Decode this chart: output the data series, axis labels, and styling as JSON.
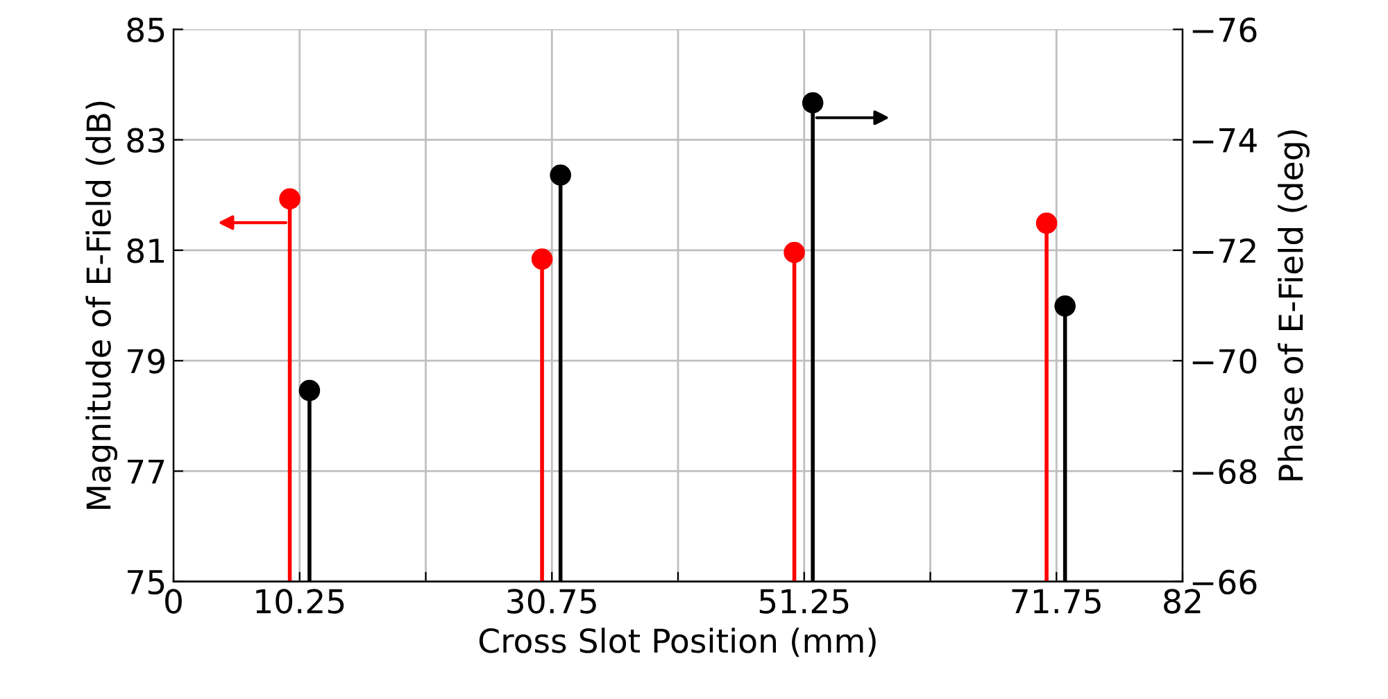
{
  "chart_data": {
    "type": "lollipop",
    "xlabel": "Cross Slot Position (mm)",
    "ylabel": "Magnitude of E-Field (dB)",
    "y2label": "Phase of E-Field (deg)",
    "xlim": [
      0,
      82
    ],
    "xticks": [
      0,
      10.25,
      {
        "value": 20.5,
        "label": null
      },
      30.75,
      {
        "value": 41,
        "label": null
      },
      51.25,
      {
        "value": 61.5,
        "label": null
      },
      71.75,
      82
    ],
    "ylim": [
      75,
      85
    ],
    "yticks": [
      75,
      77,
      79,
      81,
      83,
      85
    ],
    "y2lim": [
      -66,
      -76
    ],
    "y2ticks": [
      {
        "value": -66,
        "label": "−66"
      },
      {
        "value": -68,
        "label": "−68"
      },
      {
        "value": -70,
        "label": "−70"
      },
      {
        "value": -72,
        "label": "−72"
      },
      {
        "value": -74,
        "label": "−74"
      },
      {
        "value": -76,
        "label": "−76"
      }
    ],
    "grid": true,
    "marker": "circle",
    "series": [
      {
        "color": "#ff0000",
        "x": [
          9.45,
          29.95,
          50.45,
          70.95
        ],
        "values": [
          81.93,
          80.84,
          80.96,
          81.49
        ]
      },
      {
        "color": "#000000",
        "axis": "y2",
        "x": [
          11.05,
          31.45,
          51.95,
          72.45
        ],
        "values": [
          -69.46,
          -73.36,
          -74.67,
          -70.99
        ]
      }
    ]
  }
}
